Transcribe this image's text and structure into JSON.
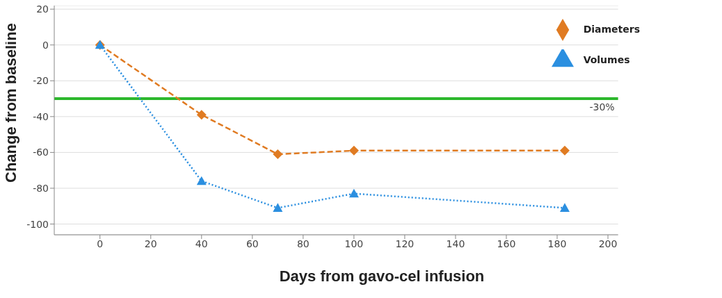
{
  "chart_data": {
    "type": "line",
    "xlabel": "Days from gavo-cel infusion",
    "ylabel": "Change from baseline",
    "x": [
      0,
      40,
      70,
      100,
      183
    ],
    "series": [
      {
        "name": "Diameters",
        "color": "#e07b22",
        "values": [
          0,
          -39,
          -61,
          -59,
          -59
        ],
        "marker": "diamond",
        "line_style": "dashed"
      },
      {
        "name": "Volumes",
        "color": "#2b8fe0",
        "values": [
          0,
          -76,
          -91,
          -83,
          -91
        ],
        "marker": "triangle",
        "line_style": "dotted"
      }
    ],
    "xlim": [
      -18,
      204
    ],
    "xticks": [
      0,
      20,
      40,
      60,
      80,
      100,
      120,
      140,
      160,
      180,
      200
    ],
    "ylim": [
      -106,
      22
    ],
    "yticks": [
      20,
      0,
      -20,
      -40,
      -60,
      -80,
      -100
    ],
    "ref_lines": [
      {
        "axis": "y",
        "value": -30,
        "label": "-30%",
        "color": "#2db82d"
      }
    ],
    "grid": "y",
    "legend": "top right"
  }
}
